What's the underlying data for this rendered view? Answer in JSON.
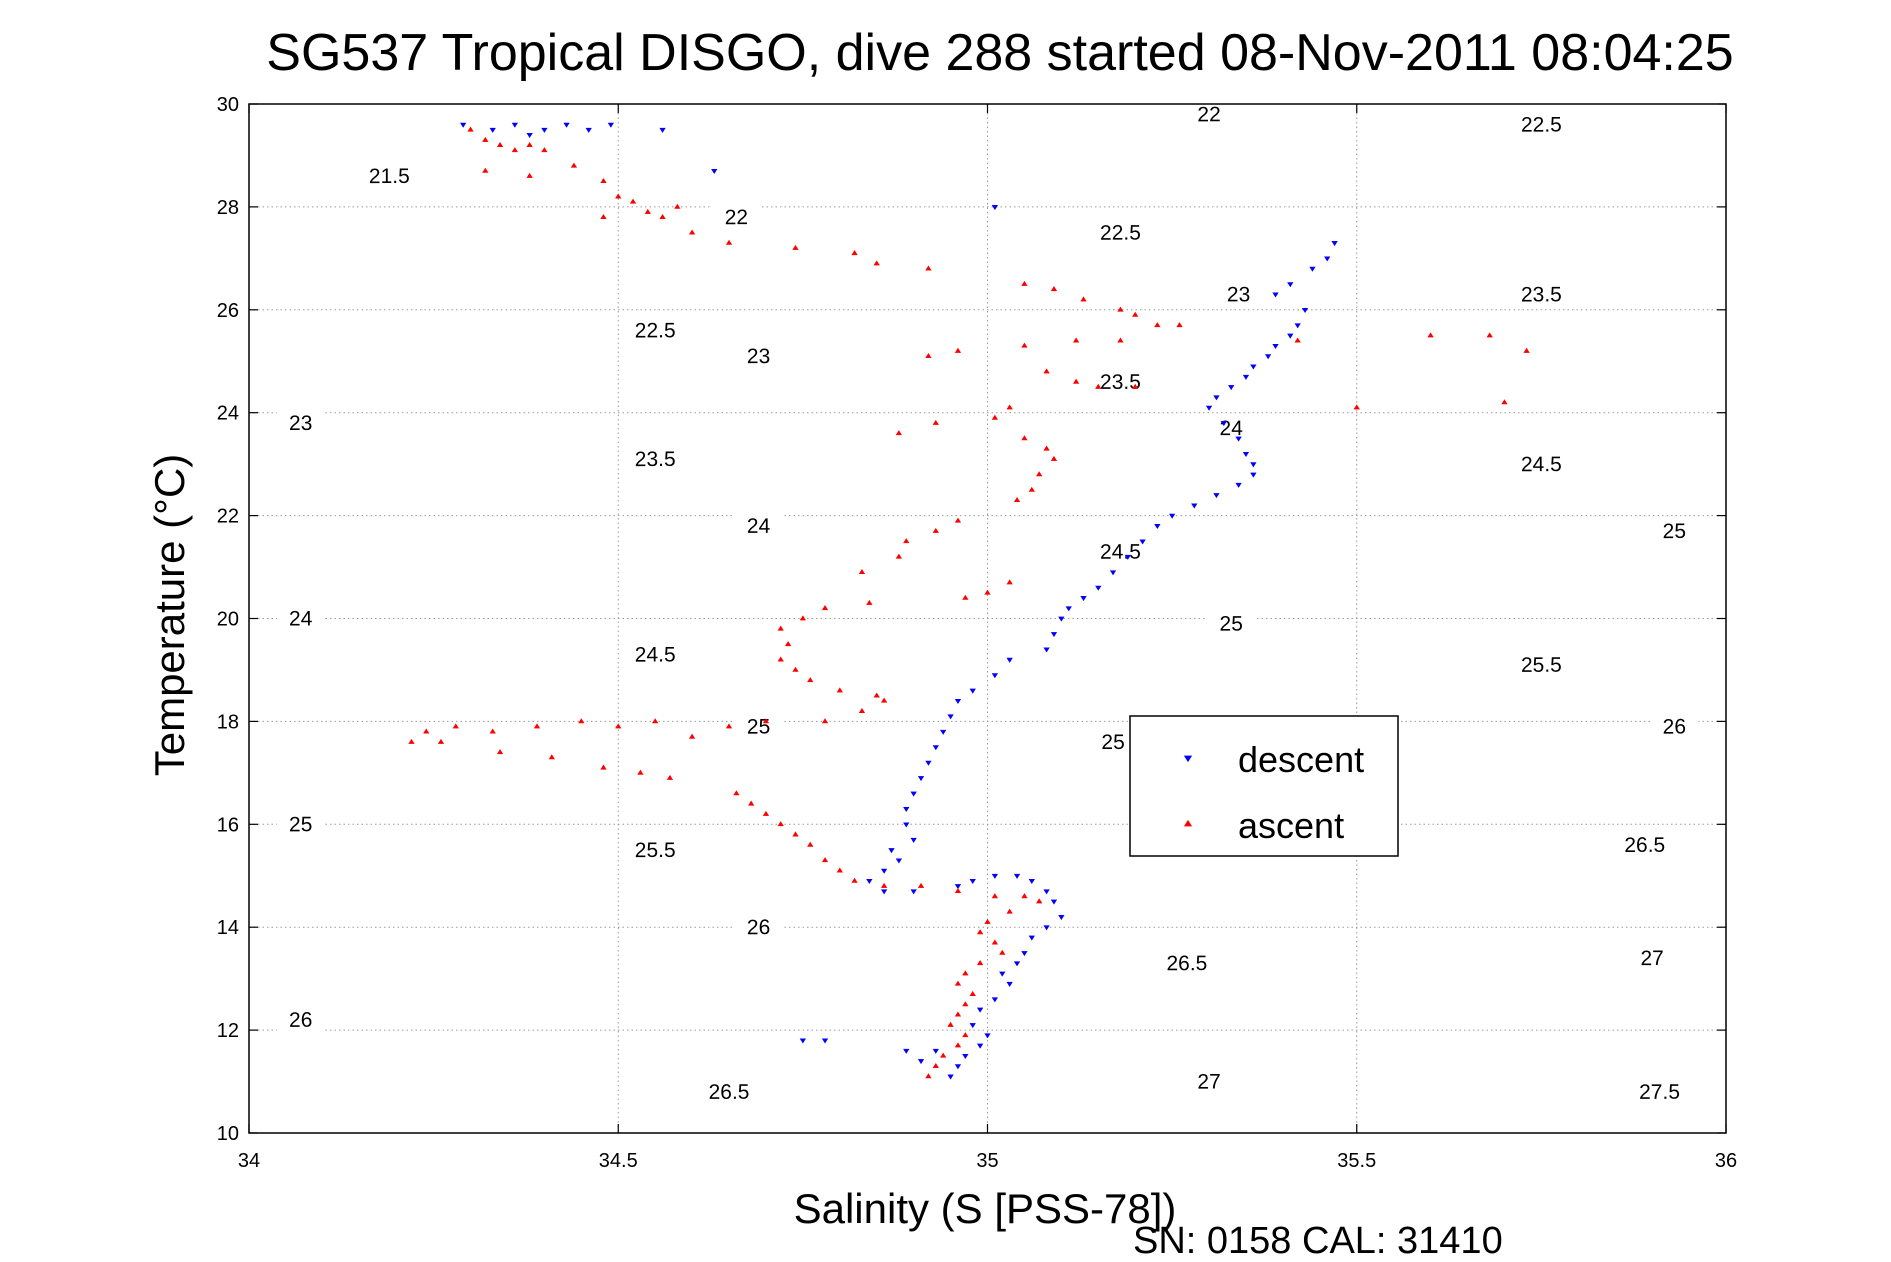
{
  "chart_data": {
    "type": "scatter",
    "title": "SG537 Tropical DISGO, dive 288 started 08-Nov-2011 08:04:25",
    "xlabel": "Salinity (S [PSS-78])",
    "ylabel": "Temperature (°C)",
    "footer": "SN: 0158  CAL: 31410",
    "xlim": [
      34,
      36
    ],
    "ylim": [
      10,
      30
    ],
    "xticks": [
      "34",
      "34.5",
      "35",
      "35.5",
      "36"
    ],
    "yticks": [
      "10",
      "12",
      "14",
      "16",
      "18",
      "20",
      "22",
      "24",
      "26",
      "28",
      "30"
    ],
    "grid": true,
    "legend_position": "center-right",
    "colors": {
      "descent": "#0000ff",
      "ascent": "#ff0000",
      "contour": "#000000"
    },
    "contours": [
      {
        "density": "21.5",
        "labels": [
          [
            34.19,
            28.6
          ]
        ]
      },
      {
        "density": "22",
        "labels": [
          [
            34.66,
            27.8
          ],
          [
            35.3,
            29.8
          ]
        ]
      },
      {
        "density": "22.5",
        "labels": [
          [
            34.55,
            25.6
          ],
          [
            35.18,
            27.5
          ],
          [
            35.75,
            29.6
          ]
        ]
      },
      {
        "density": "23",
        "labels": [
          [
            34.07,
            23.8
          ],
          [
            34.69,
            25.1
          ],
          [
            35.34,
            26.3
          ]
        ]
      },
      {
        "density": "23.5",
        "labels": [
          [
            34.55,
            23.1
          ],
          [
            35.18,
            24.6
          ],
          [
            35.75,
            26.3
          ]
        ]
      },
      {
        "density": "24",
        "labels": [
          [
            34.07,
            20.0
          ],
          [
            34.69,
            21.8
          ],
          [
            35.33,
            23.7
          ]
        ]
      },
      {
        "density": "24.5",
        "labels": [
          [
            34.55,
            19.3
          ],
          [
            35.18,
            21.3
          ],
          [
            35.75,
            23.0
          ]
        ]
      },
      {
        "density": "25",
        "labels": [
          [
            34.07,
            16.0
          ],
          [
            34.69,
            17.9
          ],
          [
            35.17,
            17.6
          ],
          [
            35.33,
            19.9
          ],
          [
            35.93,
            21.7
          ]
        ]
      },
      {
        "density": "25.5",
        "labels": [
          [
            34.55,
            15.5
          ],
          [
            35.75,
            19.1
          ]
        ]
      },
      {
        "density": "26",
        "labels": [
          [
            34.07,
            12.2
          ],
          [
            34.69,
            14.0
          ],
          [
            35.93,
            17.9
          ]
        ]
      },
      {
        "density": "26.5",
        "labels": [
          [
            34.65,
            10.8
          ],
          [
            35.27,
            13.3
          ],
          [
            35.89,
            15.6
          ]
        ]
      },
      {
        "density": "27",
        "labels": [
          [
            35.3,
            11.0
          ],
          [
            35.9,
            13.4
          ]
        ]
      },
      {
        "density": "27.5",
        "labels": [
          [
            35.91,
            10.8
          ]
        ]
      }
    ],
    "series": [
      {
        "name": "descent",
        "marker": "triangle-down",
        "points": [
          [
            34.29,
            29.6
          ],
          [
            34.33,
            29.5
          ],
          [
            34.36,
            29.6
          ],
          [
            34.38,
            29.4
          ],
          [
            34.4,
            29.5
          ],
          [
            34.43,
            29.6
          ],
          [
            34.46,
            29.5
          ],
          [
            34.49,
            29.6
          ],
          [
            34.56,
            29.5
          ],
          [
            34.63,
            28.7
          ],
          [
            35.01,
            28.0
          ],
          [
            35.47,
            27.3
          ],
          [
            35.46,
            27.0
          ],
          [
            35.44,
            26.8
          ],
          [
            35.41,
            26.5
          ],
          [
            35.39,
            26.3
          ],
          [
            35.43,
            26.0
          ],
          [
            35.42,
            25.7
          ],
          [
            35.41,
            25.5
          ],
          [
            35.39,
            25.3
          ],
          [
            35.38,
            25.1
          ],
          [
            35.36,
            24.9
          ],
          [
            35.35,
            24.7
          ],
          [
            35.33,
            24.5
          ],
          [
            35.31,
            24.3
          ],
          [
            35.3,
            24.1
          ],
          [
            35.32,
            23.8
          ],
          [
            35.34,
            23.5
          ],
          [
            35.35,
            23.2
          ],
          [
            35.36,
            23.0
          ],
          [
            35.36,
            22.8
          ],
          [
            35.34,
            22.6
          ],
          [
            35.31,
            22.4
          ],
          [
            35.28,
            22.2
          ],
          [
            35.25,
            22.0
          ],
          [
            35.23,
            21.8
          ],
          [
            35.21,
            21.5
          ],
          [
            35.19,
            21.2
          ],
          [
            35.17,
            20.9
          ],
          [
            35.15,
            20.6
          ],
          [
            35.13,
            20.4
          ],
          [
            35.11,
            20.2
          ],
          [
            35.1,
            20.0
          ],
          [
            35.09,
            19.7
          ],
          [
            35.08,
            19.4
          ],
          [
            35.03,
            19.2
          ],
          [
            35.01,
            18.9
          ],
          [
            34.98,
            18.6
          ],
          [
            34.96,
            18.4
          ],
          [
            34.95,
            18.1
          ],
          [
            34.94,
            17.8
          ],
          [
            34.93,
            17.5
          ],
          [
            34.92,
            17.2
          ],
          [
            34.91,
            16.9
          ],
          [
            34.9,
            16.6
          ],
          [
            34.89,
            16.3
          ],
          [
            34.89,
            16.0
          ],
          [
            34.9,
            15.7
          ],
          [
            34.87,
            15.5
          ],
          [
            34.88,
            15.3
          ],
          [
            34.86,
            15.1
          ],
          [
            34.84,
            14.9
          ],
          [
            34.86,
            14.7
          ],
          [
            34.9,
            14.7
          ],
          [
            34.96,
            14.8
          ],
          [
            34.98,
            14.9
          ],
          [
            35.01,
            15.0
          ],
          [
            35.04,
            15.0
          ],
          [
            35.06,
            14.9
          ],
          [
            35.08,
            14.7
          ],
          [
            35.09,
            14.5
          ],
          [
            35.1,
            14.2
          ],
          [
            35.08,
            14.0
          ],
          [
            35.06,
            13.8
          ],
          [
            35.05,
            13.5
          ],
          [
            35.04,
            13.3
          ],
          [
            35.02,
            13.1
          ],
          [
            35.03,
            12.9
          ],
          [
            35.01,
            12.6
          ],
          [
            34.99,
            12.4
          ],
          [
            34.98,
            12.1
          ],
          [
            35.0,
            11.9
          ],
          [
            34.99,
            11.7
          ],
          [
            34.97,
            11.5
          ],
          [
            34.96,
            11.3
          ],
          [
            34.95,
            11.1
          ],
          [
            34.93,
            11.6
          ],
          [
            34.91,
            11.4
          ],
          [
            34.89,
            11.6
          ],
          [
            34.78,
            11.8
          ],
          [
            34.75,
            11.8
          ]
        ]
      },
      {
        "name": "ascent",
        "marker": "triangle-up",
        "points": [
          [
            34.3,
            29.5
          ],
          [
            34.32,
            29.3
          ],
          [
            34.34,
            29.2
          ],
          [
            34.36,
            29.1
          ],
          [
            34.38,
            29.2
          ],
          [
            34.4,
            29.1
          ],
          [
            34.32,
            28.7
          ],
          [
            34.38,
            28.6
          ],
          [
            34.44,
            28.8
          ],
          [
            34.48,
            28.5
          ],
          [
            34.5,
            28.2
          ],
          [
            34.52,
            28.1
          ],
          [
            34.54,
            27.9
          ],
          [
            34.56,
            27.8
          ],
          [
            34.58,
            28.0
          ],
          [
            34.48,
            27.8
          ],
          [
            34.6,
            27.5
          ],
          [
            34.65,
            27.3
          ],
          [
            34.74,
            27.2
          ],
          [
            34.82,
            27.1
          ],
          [
            34.85,
            26.9
          ],
          [
            34.92,
            26.8
          ],
          [
            35.05,
            26.5
          ],
          [
            35.09,
            26.4
          ],
          [
            35.13,
            26.2
          ],
          [
            35.18,
            26.0
          ],
          [
            35.2,
            25.9
          ],
          [
            35.23,
            25.7
          ],
          [
            35.26,
            25.7
          ],
          [
            35.18,
            25.4
          ],
          [
            35.12,
            25.4
          ],
          [
            35.05,
            25.3
          ],
          [
            34.96,
            25.2
          ],
          [
            34.92,
            25.1
          ],
          [
            35.08,
            24.8
          ],
          [
            35.12,
            24.6
          ],
          [
            35.15,
            24.5
          ],
          [
            35.2,
            24.5
          ],
          [
            35.03,
            24.1
          ],
          [
            35.01,
            23.9
          ],
          [
            34.93,
            23.8
          ],
          [
            34.88,
            23.6
          ],
          [
            35.05,
            23.5
          ],
          [
            35.08,
            23.3
          ],
          [
            35.09,
            23.1
          ],
          [
            35.07,
            22.8
          ],
          [
            35.06,
            22.5
          ],
          [
            35.04,
            22.3
          ],
          [
            34.96,
            21.9
          ],
          [
            34.93,
            21.7
          ],
          [
            34.89,
            21.5
          ],
          [
            34.88,
            21.2
          ],
          [
            34.83,
            20.9
          ],
          [
            35.03,
            20.7
          ],
          [
            35.0,
            20.5
          ],
          [
            34.97,
            20.4
          ],
          [
            34.84,
            20.3
          ],
          [
            34.78,
            20.2
          ],
          [
            34.75,
            20.0
          ],
          [
            34.72,
            19.8
          ],
          [
            34.73,
            19.5
          ],
          [
            34.72,
            19.2
          ],
          [
            34.74,
            19.0
          ],
          [
            34.76,
            18.8
          ],
          [
            34.8,
            18.6
          ],
          [
            34.85,
            18.5
          ],
          [
            34.86,
            18.4
          ],
          [
            34.83,
            18.2
          ],
          [
            34.78,
            18.0
          ],
          [
            34.7,
            18.0
          ],
          [
            34.65,
            17.9
          ],
          [
            34.6,
            17.7
          ],
          [
            34.55,
            18.0
          ],
          [
            34.5,
            17.9
          ],
          [
            34.45,
            18.0
          ],
          [
            34.39,
            17.9
          ],
          [
            34.33,
            17.8
          ],
          [
            34.28,
            17.9
          ],
          [
            34.24,
            17.8
          ],
          [
            34.22,
            17.6
          ],
          [
            34.26,
            17.6
          ],
          [
            34.34,
            17.4
          ],
          [
            34.41,
            17.3
          ],
          [
            34.48,
            17.1
          ],
          [
            34.53,
            17.0
          ],
          [
            34.57,
            16.9
          ],
          [
            34.66,
            16.6
          ],
          [
            34.68,
            16.4
          ],
          [
            34.7,
            16.2
          ],
          [
            34.72,
            16.0
          ],
          [
            34.74,
            15.8
          ],
          [
            34.76,
            15.6
          ],
          [
            34.78,
            15.3
          ],
          [
            34.8,
            15.1
          ],
          [
            34.82,
            14.9
          ],
          [
            34.86,
            14.8
          ],
          [
            34.91,
            14.8
          ],
          [
            34.96,
            14.7
          ],
          [
            35.01,
            14.6
          ],
          [
            35.05,
            14.6
          ],
          [
            35.07,
            14.5
          ],
          [
            35.03,
            14.3
          ],
          [
            35.0,
            14.1
          ],
          [
            34.99,
            13.9
          ],
          [
            35.01,
            13.7
          ],
          [
            35.02,
            13.5
          ],
          [
            34.99,
            13.3
          ],
          [
            34.97,
            13.1
          ],
          [
            34.96,
            12.9
          ],
          [
            34.98,
            12.7
          ],
          [
            34.97,
            12.5
          ],
          [
            34.96,
            12.3
          ],
          [
            34.95,
            12.1
          ],
          [
            34.97,
            11.9
          ],
          [
            34.96,
            11.7
          ],
          [
            34.94,
            11.5
          ],
          [
            34.93,
            11.3
          ],
          [
            34.92,
            11.1
          ],
          [
            35.42,
            25.4
          ],
          [
            35.6,
            25.5
          ],
          [
            35.68,
            25.5
          ],
          [
            35.73,
            25.2
          ],
          [
            35.7,
            24.2
          ],
          [
            35.5,
            24.1
          ]
        ]
      }
    ]
  }
}
